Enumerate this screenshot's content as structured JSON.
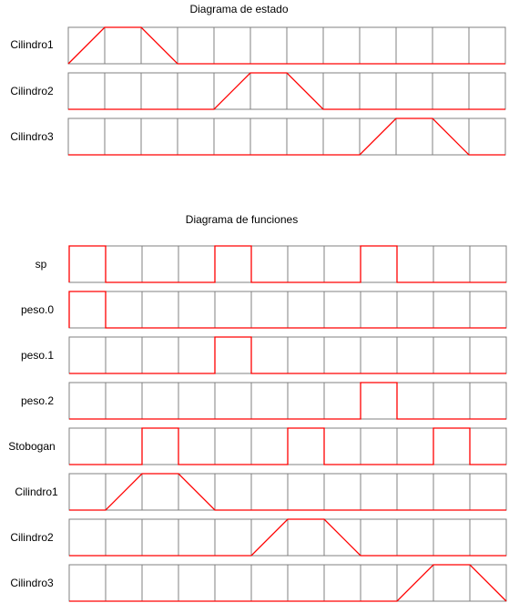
{
  "colors": {
    "grid": "#808080",
    "signal": "#ff0000",
    "background": "#ffffff"
  },
  "estado": {
    "title": "Diagrama de estado",
    "rows": [
      {
        "label": "Cilindro1",
        "signal": [
          [
            0,
            0
          ],
          [
            1,
            1
          ],
          [
            2,
            1
          ],
          [
            3,
            0
          ],
          [
            12,
            0
          ]
        ]
      },
      {
        "label": "Cilindro2",
        "signal": [
          [
            0,
            0
          ],
          [
            4,
            0
          ],
          [
            5,
            1
          ],
          [
            6,
            1
          ],
          [
            7,
            0
          ],
          [
            12,
            0
          ]
        ]
      },
      {
        "label": "Cilindro3",
        "signal": [
          [
            0,
            0
          ],
          [
            8,
            0
          ],
          [
            9,
            1
          ],
          [
            10,
            1
          ],
          [
            11,
            0
          ],
          [
            12,
            0
          ]
        ]
      }
    ]
  },
  "funciones": {
    "title": "Diagrama de funciones",
    "rows": [
      {
        "label": "sp",
        "signal": [
          [
            0,
            0
          ],
          [
            0,
            1
          ],
          [
            1,
            1
          ],
          [
            1,
            0
          ],
          [
            4,
            0
          ],
          [
            4,
            1
          ],
          [
            5,
            1
          ],
          [
            5,
            0
          ],
          [
            8,
            0
          ],
          [
            8,
            1
          ],
          [
            9,
            1
          ],
          [
            9,
            0
          ],
          [
            12,
            0
          ]
        ]
      },
      {
        "label": "peso.0",
        "signal": [
          [
            0,
            0
          ],
          [
            0,
            1
          ],
          [
            1,
            1
          ],
          [
            1,
            0
          ],
          [
            12,
            0
          ]
        ]
      },
      {
        "label": "peso.1",
        "signal": [
          [
            0,
            0
          ],
          [
            4,
            0
          ],
          [
            4,
            1
          ],
          [
            5,
            1
          ],
          [
            5,
            0
          ],
          [
            12,
            0
          ]
        ]
      },
      {
        "label": "peso.2",
        "signal": [
          [
            0,
            0
          ],
          [
            8,
            0
          ],
          [
            8,
            1
          ],
          [
            9,
            1
          ],
          [
            9,
            0
          ],
          [
            12,
            0
          ]
        ]
      },
      {
        "label": "Stobogan",
        "signal": [
          [
            0,
            0
          ],
          [
            2,
            0
          ],
          [
            2,
            1
          ],
          [
            3,
            1
          ],
          [
            3,
            0
          ],
          [
            6,
            0
          ],
          [
            6,
            1
          ],
          [
            7,
            1
          ],
          [
            7,
            0
          ],
          [
            10,
            0
          ],
          [
            10,
            1
          ],
          [
            11,
            1
          ],
          [
            11,
            0
          ],
          [
            12,
            0
          ]
        ]
      },
      {
        "label": "Cilindro1",
        "signal": [
          [
            0,
            0
          ],
          [
            1,
            0
          ],
          [
            2,
            1
          ],
          [
            3,
            1
          ],
          [
            4,
            0
          ],
          [
            12,
            0
          ]
        ]
      },
      {
        "label": "Cilindro2",
        "signal": [
          [
            0,
            0
          ],
          [
            5,
            0
          ],
          [
            6,
            1
          ],
          [
            7,
            1
          ],
          [
            8,
            0
          ],
          [
            12,
            0
          ]
        ]
      },
      {
        "label": "Cilindro3",
        "signal": [
          [
            0,
            0
          ],
          [
            9,
            0
          ],
          [
            10,
            1
          ],
          [
            11,
            1
          ],
          [
            12,
            0
          ]
        ]
      }
    ]
  }
}
